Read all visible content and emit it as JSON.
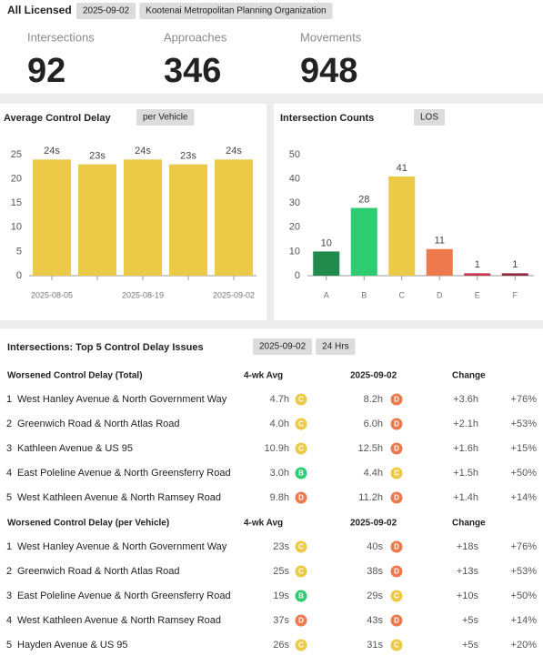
{
  "header": {
    "title": "All Licensed",
    "tags": [
      "2025-09-02",
      "Kootenai Metropolitan Planning Organization"
    ]
  },
  "stats": [
    {
      "label": "Intersections",
      "value": 92
    },
    {
      "label": "Approaches",
      "value": 346
    },
    {
      "label": "Movements",
      "value": 948
    }
  ],
  "chart_data": [
    {
      "type": "bar",
      "title": "Average Control Delay",
      "tag": "per Vehicle",
      "categories": [
        "2025-08-05",
        null,
        "2025-08-19",
        null,
        "2025-09-02"
      ],
      "values": [
        24,
        23,
        24,
        23,
        24
      ],
      "value_labels": [
        "24s",
        "23s",
        "24s",
        "23s",
        "24s"
      ],
      "color": "#edc948",
      "ylim": [
        0,
        25
      ],
      "yticks": [
        0,
        5,
        10,
        15,
        20,
        25
      ]
    },
    {
      "type": "bar",
      "title": "Intersection Counts",
      "tag": "LOS",
      "categories": [
        "A",
        "B",
        "C",
        "D",
        "E",
        "F"
      ],
      "values": [
        10,
        28,
        41,
        11,
        1,
        1
      ],
      "colors": [
        "#218a4d",
        "#2ecc71",
        "#edc948",
        "#ec7a4d",
        "#c9374f",
        "#93293f"
      ],
      "ylim": [
        0,
        50
      ],
      "yticks": [
        0,
        10,
        20,
        30,
        40,
        50
      ]
    }
  ],
  "issues": {
    "title": "Intersections: Top 5 Control Delay Issues",
    "tags": [
      "2025-09-02",
      "24 Hrs"
    ],
    "tables": [
      {
        "header": [
          "Worsened Control Delay (Total)",
          "4-wk Avg",
          "2025-09-02",
          "Change"
        ],
        "rows": [
          [
            "1",
            "West Hanley Avenue & North Government Way",
            "4.7h",
            "C",
            "8.2h",
            "D",
            "+3.6h",
            "+76%"
          ],
          [
            "2",
            "Greenwich Road & North Atlas Road",
            "4.0h",
            "C",
            "6.0h",
            "D",
            "+2.1h",
            "+53%"
          ],
          [
            "3",
            "Kathleen Avenue & US 95",
            "10.9h",
            "C",
            "12.5h",
            "D",
            "+1.6h",
            "+15%"
          ],
          [
            "4",
            "East Poleline Avenue & North Greensferry Road",
            "3.0h",
            "B",
            "4.4h",
            "C",
            "+1.5h",
            "+50%"
          ],
          [
            "5",
            "West Kathleen Avenue & North Ramsey Road",
            "9.8h",
            "D",
            "11.2h",
            "D",
            "+1.4h",
            "+14%"
          ]
        ]
      },
      {
        "header": [
          "Worsened Control Delay (per Vehicle)",
          "4-wk Avg",
          "2025-09-02",
          "Change"
        ],
        "rows": [
          [
            "1",
            "West Hanley Avenue & North Government Way",
            "23s",
            "C",
            "40s",
            "D",
            "+18s",
            "+76%"
          ],
          [
            "2",
            "Greenwich Road & North Atlas Road",
            "25s",
            "C",
            "38s",
            "D",
            "+13s",
            "+53%"
          ],
          [
            "3",
            "East Poleline Avenue & North Greensferry Road",
            "19s",
            "B",
            "29s",
            "C",
            "+10s",
            "+50%"
          ],
          [
            "4",
            "West Kathleen Avenue & North Ramsey Road",
            "37s",
            "D",
            "43s",
            "D",
            "+5s",
            "+14%"
          ],
          [
            "5",
            "Hayden Avenue & US 95",
            "26s",
            "C",
            "31s",
            "C",
            "+5s",
            "+20%"
          ]
        ]
      }
    ]
  }
}
